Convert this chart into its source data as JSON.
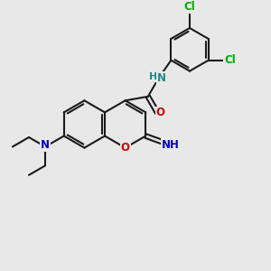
{
  "bg_color": "#e8e8e8",
  "bond_color": "#1a1a1a",
  "bond_width": 1.5,
  "atom_colors": {
    "O": "#cc0000",
    "N": "#1a8a8a",
    "N_imine": "#1a1a1a",
    "Cl": "#00aa00",
    "blue_N": "#0000cc"
  },
  "font_size": 8.5,
  "figsize": [
    3.0,
    3.0
  ],
  "dpi": 100
}
